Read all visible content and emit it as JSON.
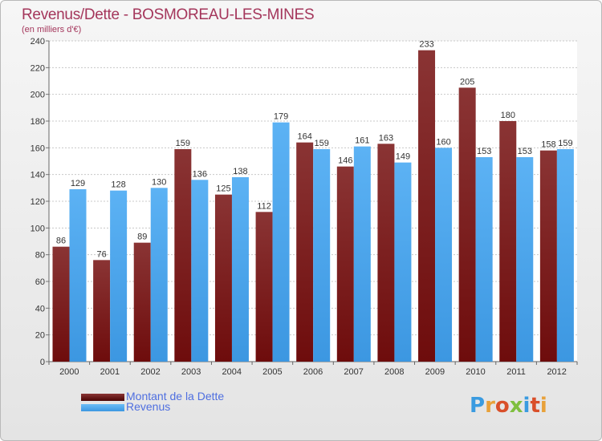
{
  "title": "Revenus/Dette - BOSMOREAU-LES-MINES",
  "subtitle": "(en milliers d'€)",
  "logo_text": "Proxiti",
  "colors": {
    "debt": "#6e0c0c",
    "revenue": "#3c97e1",
    "title": "#a4365b",
    "legend_text": "#4f6fe0"
  },
  "chart_data": {
    "type": "bar",
    "categories": [
      "2000",
      "2001",
      "2002",
      "2003",
      "2004",
      "2005",
      "2006",
      "2007",
      "2008",
      "2009",
      "2010",
      "2011",
      "2012"
    ],
    "series": [
      {
        "name": "Montant de la Dette",
        "values": [
          86,
          76,
          89,
          159,
          125,
          112,
          164,
          146,
          163,
          233,
          205,
          180,
          158
        ]
      },
      {
        "name": "Revenus",
        "values": [
          129,
          128,
          130,
          136,
          138,
          179,
          159,
          161,
          149,
          160,
          153,
          153,
          159
        ]
      }
    ],
    "yticks": [
      0,
      20,
      40,
      60,
      80,
      100,
      120,
      140,
      160,
      180,
      200,
      220,
      240
    ],
    "ylim": [
      0,
      240
    ],
    "grid": true,
    "legend_position": "bottom-left"
  }
}
